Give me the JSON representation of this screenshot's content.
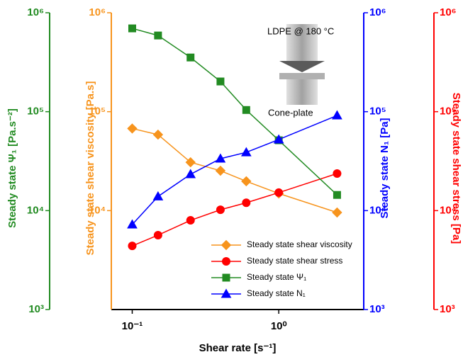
{
  "chart_data": {
    "type": "line",
    "xlabel": "Shear rate [s⁻¹]",
    "xscale": "log",
    "yscale": "log",
    "x": [
      0.1,
      0.15,
      0.25,
      0.4,
      0.6,
      1.0,
      2.5
    ],
    "xlim": [
      0.072,
      3.8
    ],
    "xticks": [
      {
        "value": 0.1,
        "label": "10⁻¹"
      },
      {
        "value": 1,
        "label": "10⁰"
      }
    ],
    "ylabel": "Steady state Ψ₁ [Pa.s⁻²]",
    "ycolor": "#228b22",
    "ylim": [
      1000,
      1000000
    ],
    "yticks": [
      {
        "value": 1000,
        "label": "10³"
      },
      {
        "value": 10000,
        "label": "10⁴"
      },
      {
        "value": 100000,
        "label": "10⁵"
      },
      {
        "value": 1000000,
        "label": "10⁶"
      }
    ],
    "y2label": "Steady state shear viscosity [Pa.s]",
    "y2color": "#f7941d",
    "y2lim": [
      1000,
      1000000
    ],
    "y2ticks": [
      {
        "value": 10000,
        "label": "10⁴"
      },
      {
        "value": 100000,
        "label": "10⁵"
      },
      {
        "value": 1000000,
        "label": "10⁶"
      }
    ],
    "y3label": "Steady state N₁ [Pa]",
    "y3color": "#0000ff",
    "y3lim": [
      1000,
      1000000
    ],
    "y3ticks": [
      {
        "value": 1000,
        "label": "10³"
      },
      {
        "value": 10000,
        "label": "10⁴"
      },
      {
        "value": 100000,
        "label": "10⁵"
      },
      {
        "value": 1000000,
        "label": "10⁶"
      }
    ],
    "y4label": "Steady state shear stress [Pa]",
    "y4color": "#ff0000",
    "y4lim": [
      1000,
      1000000
    ],
    "y4ticks": [
      {
        "value": 1000,
        "label": "10³"
      },
      {
        "value": 10000,
        "label": "10⁴"
      },
      {
        "value": 100000,
        "label": "10⁵"
      },
      {
        "value": 1000000,
        "label": "10⁶"
      }
    ],
    "series": [
      {
        "name": "Steady state shear viscosity",
        "color": "#f7941d",
        "marker": "diamond",
        "axis": "y2",
        "values": [
          67600,
          58600,
          30800,
          25300,
          19800,
          14900,
          9570
        ]
      },
      {
        "name": "Steady state shear stress",
        "color": "#ff0000",
        "marker": "circle",
        "axis": "y4",
        "values": [
          4400,
          5650,
          7980,
          10200,
          12000,
          15200,
          23700
        ]
      },
      {
        "name": "Steady state Ψ₁",
        "color": "#228b22",
        "marker": "square",
        "axis": "y",
        "values": [
          695000,
          589000,
          353000,
          202000,
          104000,
          51400,
          14400
        ]
      },
      {
        "name": "Steady state N₁",
        "color": "#0000ff",
        "marker": "triangle",
        "axis": "y3",
        "values": [
          7230,
          13900,
          23300,
          33500,
          38800,
          52300,
          91500
        ]
      }
    ],
    "legend": "lower right",
    "annotations": [
      "LDPE @ 180  °C",
      "Cone-plate"
    ]
  }
}
